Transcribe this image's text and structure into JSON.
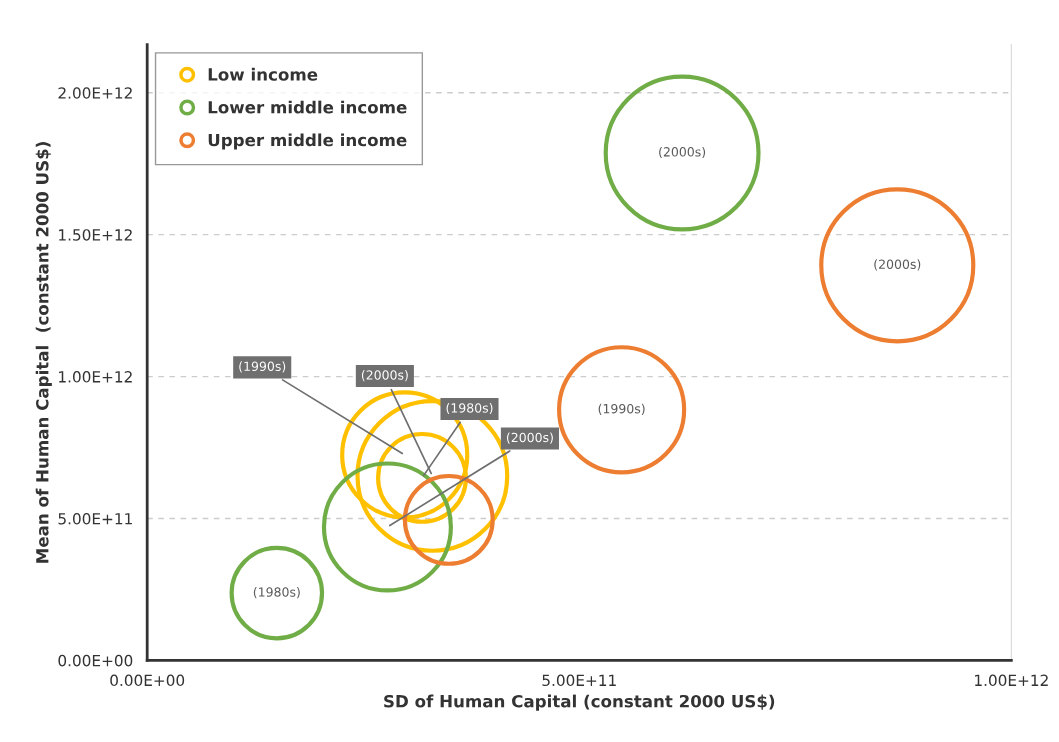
{
  "chart_data": {
    "type": "bubble",
    "xlabel": "SD of Human Capital (constant 2000 US$)",
    "ylabel": "Mean of Human Capital  (constant 2000 US$)",
    "series": [
      {
        "name": "Low income",
        "color": "#ffc000",
        "x": [
          318000000000.0,
          298000000000.0,
          330000000000.0
        ],
        "values": [
          643000000000.0,
          724000000000.0,
          650000000000.0
        ],
        "sizes": [
          0.33,
          0.67,
          0.96
        ]
      },
      {
        "name": "Lower middle income",
        "color": "#70ad47",
        "x": [
          150000000000.0,
          278000000000.0,
          619000000000.0
        ],
        "values": [
          237000000000.0,
          470000000000.0,
          1788000000000.0
        ],
        "sizes": [
          0.35,
          0.69,
          1
        ]
      },
      {
        "name": "Upper middle income",
        "color": "#ed7d31",
        "x": [
          349000000000.0,
          549000000000.0,
          868000000000.0
        ],
        "values": [
          495000000000.0,
          883000000000.0,
          1392000000000.0
        ],
        "sizes": [
          0.33,
          0.67,
          0.99
        ]
      }
    ],
    "annotations": [
      {
        "text": "(1990s)",
        "x": 298000000000.0,
        "y": 724000000000.0
      },
      {
        "text": "(2000s)",
        "x": 330000000000.0,
        "y": 650000000000.0
      },
      {
        "text": "(1980s)",
        "x": 318000000000.0,
        "y": 643000000000.0
      },
      {
        "text": "(1980s)",
        "x": 150000000000.0,
        "y": 237000000000.0
      },
      {
        "text": "(2000s)",
        "x": 278000000000.0,
        "y": 470000000000.0
      },
      {
        "text": "(2000s)",
        "x": 619000000000.0,
        "y": 1788000000000.0
      },
      {
        "text": "(1990s)",
        "x": 549000000000.0,
        "y": 883000000000.0
      },
      {
        "text": "(2000s)",
        "x": 868000000000.0,
        "y": 1392000000000.0
      }
    ],
    "xlim": [
      0,
      1000000000000.0
    ],
    "ylim": [
      0,
      2170000000000.0
    ],
    "xticks": [
      {
        "value": 0,
        "label": "0.00E+00"
      },
      {
        "value": 500000000000.0,
        "label": "5.00E+11"
      },
      {
        "value": 1000000000000.0,
        "label": "1.00E+12"
      }
    ],
    "yticks": [
      {
        "value": 0,
        "label": "0.00E+00"
      },
      {
        "value": 500000000000.0,
        "label": "5.00E+11"
      },
      {
        "value": 1000000000000.0,
        "label": "1.00E+12"
      },
      {
        "value": 1500000000000.0,
        "label": "1.50E+12"
      },
      {
        "value": 2000000000000.0,
        "label": "2.00E+12"
      }
    ],
    "grid": "y",
    "legend": "top left",
    "marker": "circle"
  }
}
